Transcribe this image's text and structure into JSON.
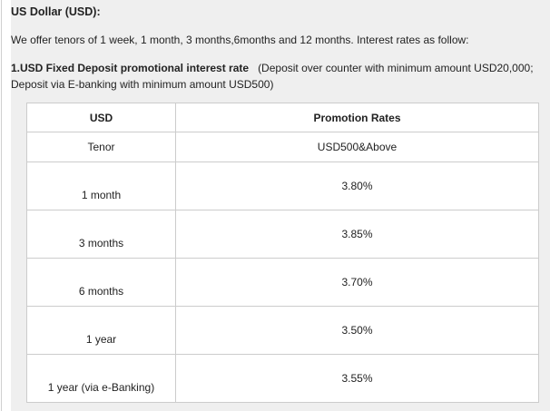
{
  "title": "US Dollar (USD):",
  "intro": "We offer tenors of 1 week, 1 month, 3 months,6months and 12 months. Interest rates as follow:",
  "section": {
    "heading": "1.USD Fixed Deposit promotional interest rate",
    "note": "   (Deposit over counter with minimum amount USD20,000; Deposit via E-banking with minimum amount USD500)"
  },
  "table": {
    "headers": [
      "USD",
      "Promotion Rates"
    ],
    "subheaders": [
      "Tenor",
      "USD500&Above"
    ],
    "rows": [
      {
        "tenor": "1 month",
        "rate": "3.80%"
      },
      {
        "tenor": "3 months",
        "rate": "3.85%"
      },
      {
        "tenor": "6 months",
        "rate": "3.70%"
      },
      {
        "tenor": "1 year",
        "rate": "3.50%"
      },
      {
        "tenor": "1 year (via e-Banking)",
        "rate": "3.55%"
      }
    ]
  }
}
